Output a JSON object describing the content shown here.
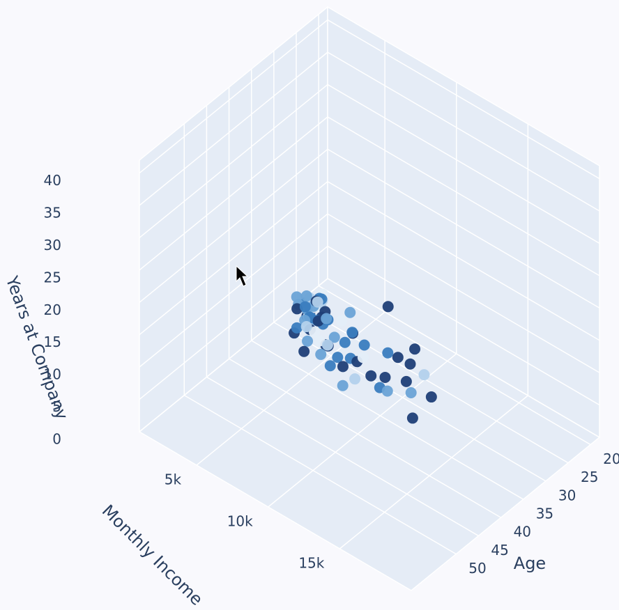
{
  "chart_data": {
    "type": "scatter3d",
    "xaxis_title": "Age",
    "yaxis_title": "Monthly Income",
    "zaxis_title": "Years at Company",
    "xlim": [
      18,
      60
    ],
    "ylim": [
      1000,
      20000
    ],
    "zlim": [
      0,
      42
    ],
    "xticks": [
      20,
      25,
      30,
      35,
      40,
      45,
      50
    ],
    "yticks": [
      {
        "value": 5000,
        "label": "5k"
      },
      {
        "value": 10000,
        "label": "10k"
      },
      {
        "value": 15000,
        "label": "15k"
      }
    ],
    "zticks": [
      0,
      5,
      10,
      15,
      20,
      25,
      30,
      35,
      40
    ],
    "grid": true,
    "series": [
      {
        "x": [
          32,
          41,
          29,
          36,
          45,
          27,
          38,
          50,
          33,
          24,
          44,
          31,
          39,
          52,
          28,
          35,
          47,
          30,
          42,
          26,
          37,
          55,
          34,
          29,
          48,
          40,
          22,
          36,
          43,
          31,
          58,
          25,
          39,
          46,
          33,
          28,
          51,
          35,
          41,
          30,
          44,
          27,
          38,
          49,
          32,
          23,
          36,
          53,
          40,
          29,
          45,
          34,
          37,
          26,
          42,
          31,
          56,
          39,
          47,
          33,
          28,
          35,
          50,
          43,
          30,
          38,
          21,
          46,
          34,
          41,
          27,
          36,
          54,
          32,
          44,
          39,
          29,
          48,
          37,
          35
        ],
        "y": [
          5200,
          9800,
          3100,
          4500,
          16200,
          2800,
          7300,
          13500,
          4100,
          2300,
          11200,
          3600,
          6100,
          18900,
          2600,
          5400,
          14100,
          3300,
          8700,
          2900,
          4800,
          17500,
          5600,
          2400,
          12300,
          9100,
          1900,
          4300,
          10400,
          3900,
          19300,
          2700,
          7600,
          15600,
          4900,
          3200,
          13900,
          5100,
          8200,
          2600,
          10900,
          3400,
          6700,
          16800,
          4400,
          2200,
          5900,
          17900,
          7800,
          3000,
          13100,
          4700,
          6300,
          2500,
          9500,
          3800,
          18400,
          7100,
          11800,
          5000,
          2900,
          6000,
          15200,
          9900,
          3500,
          5700,
          1600,
          12800,
          4600,
          8900,
          2700,
          6500,
          16500,
          4200,
          10200,
          7400,
          3100,
          14600,
          5300,
          6800
        ],
        "z": [
          7,
          12,
          5,
          10,
          20,
          3,
          9,
          22,
          6,
          2,
          15,
          8,
          11,
          24,
          4,
          7,
          18,
          5,
          10,
          3,
          8,
          30,
          9,
          4,
          16,
          13,
          1,
          6,
          21,
          5,
          33,
          2,
          14,
          17,
          10,
          4,
          25,
          7,
          12,
          6,
          19,
          5,
          9,
          27,
          8,
          1,
          10,
          20,
          15,
          3,
          14,
          6,
          11,
          2,
          18,
          5,
          28,
          8,
          22,
          10,
          3,
          9,
          19,
          12,
          7,
          13,
          0,
          16,
          4,
          11,
          1,
          7,
          36,
          6,
          10,
          15,
          3,
          23,
          5,
          8
        ],
        "colors": [
          "#1f3f77",
          "#3a7dbf",
          "#6aa3d6",
          "#1f3f77",
          "#b3d1ec",
          "#3a7dbf",
          "#1f3f77",
          "#e4eef8",
          "#6aa3d6",
          "#3a7dbf",
          "#1f3f77",
          "#6aa3d6",
          "#b3d1ec",
          "#1f3f77",
          "#3a7dbf",
          "#e4eef8",
          "#1f3f77",
          "#6aa3d6",
          "#3a7dbf",
          "#b3d1ec",
          "#3a7dbf",
          "#1f3f77",
          "#1f3f77",
          "#6aa3d6",
          "#b3d1ec",
          "#3a7dbf",
          "#e4eef8",
          "#1f3f77",
          "#6aa3d6",
          "#3a7dbf",
          "#1f3f77",
          "#b3d1ec",
          "#3a7dbf",
          "#6aa3d6",
          "#1f3f77",
          "#e4eef8",
          "#3a7dbf",
          "#1f3f77",
          "#b3d1ec",
          "#6aa3d6",
          "#1f3f77",
          "#3a7dbf",
          "#e4eef8",
          "#1f3f77",
          "#6aa3d6",
          "#b3d1ec",
          "#3a7dbf",
          "#1f3f77",
          "#6aa3d6",
          "#1f3f77",
          "#3a7dbf",
          "#b3d1ec",
          "#1f3f77",
          "#6aa3d6",
          "#e4eef8",
          "#3a7dbf",
          "#1f3f77",
          "#6aa3d6",
          "#3a7dbf",
          "#b3d1ec",
          "#1f3f77",
          "#3a7dbf",
          "#6aa3d6",
          "#1f3f77",
          "#b3d1ec",
          "#3a7dbf",
          "#e4eef8",
          "#1f3f77",
          "#6aa3d6",
          "#3a7dbf",
          "#b3d1ec",
          "#1f3f77",
          "#1f3f77",
          "#3a7dbf",
          "#6aa3d6",
          "#1f3f77",
          "#e4eef8",
          "#3a7dbf",
          "#1f3f77",
          "#6aa3d6"
        ]
      }
    ]
  }
}
